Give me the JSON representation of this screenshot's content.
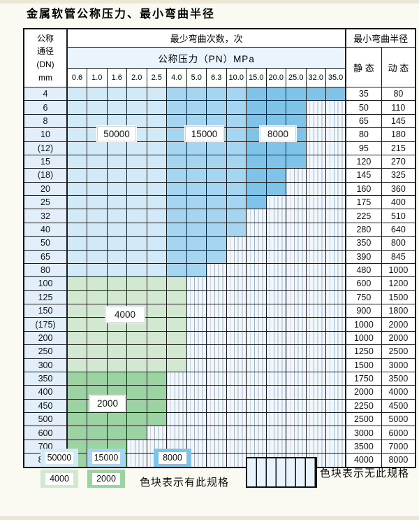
{
  "title": "金属软管公称压力、最小弯曲半径",
  "table": {
    "header": {
      "dn_label": "公称\n通径\n(DN)\nmm",
      "bend_cycles_label": "最少弯曲次数，次",
      "pressure_label": "公称压力（PN）MPa",
      "min_radius_label": "最小弯曲半径",
      "static_label": "静 态",
      "dynamic_label": "动 态",
      "pressure_cols": [
        "0.6",
        "1.0",
        "1.6",
        "2.0",
        "2.5",
        "4.0",
        "5.0",
        "6.3",
        "10.0",
        "15.0",
        "20.0",
        "25.0",
        "32.0",
        "35.0"
      ]
    },
    "rows": [
      {
        "dn": "4",
        "shaded": 14,
        "fill": "blue",
        "static": "35",
        "dynamic": "80"
      },
      {
        "dn": "6",
        "shaded": 12,
        "fill": "blue",
        "static": "50",
        "dynamic": "110"
      },
      {
        "dn": "8",
        "shaded": 12,
        "fill": "blue",
        "static": "65",
        "dynamic": "145"
      },
      {
        "dn": "10",
        "shaded": 12,
        "fill": "blue",
        "static": "80",
        "dynamic": "180"
      },
      {
        "dn": "(12)",
        "shaded": 12,
        "fill": "blue",
        "static": "95",
        "dynamic": "215"
      },
      {
        "dn": "15",
        "shaded": 12,
        "fill": "blue",
        "static": "120",
        "dynamic": "270"
      },
      {
        "dn": "(18)",
        "shaded": 11,
        "fill": "blue",
        "static": "145",
        "dynamic": "325"
      },
      {
        "dn": "20",
        "shaded": 11,
        "fill": "blue",
        "static": "160",
        "dynamic": "360"
      },
      {
        "dn": "25",
        "shaded": 10,
        "fill": "blue",
        "static": "175",
        "dynamic": "400"
      },
      {
        "dn": "32",
        "shaded": 9,
        "fill": "blue",
        "static": "225",
        "dynamic": "510"
      },
      {
        "dn": "40",
        "shaded": 9,
        "fill": "blue",
        "static": "280",
        "dynamic": "640"
      },
      {
        "dn": "50",
        "shaded": 8,
        "fill": "blue",
        "static": "350",
        "dynamic": "800"
      },
      {
        "dn": "65",
        "shaded": 8,
        "fill": "blue",
        "static": "390",
        "dynamic": "845"
      },
      {
        "dn": "80",
        "shaded": 7,
        "fill": "blue",
        "static": "480",
        "dynamic": "1000"
      },
      {
        "dn": "100",
        "shaded": 6,
        "fill": "g4000",
        "static": "600",
        "dynamic": "1200"
      },
      {
        "dn": "125",
        "shaded": 6,
        "fill": "g4000",
        "static": "750",
        "dynamic": "1500"
      },
      {
        "dn": "150",
        "shaded": 6,
        "fill": "g4000",
        "static": "900",
        "dynamic": "1800"
      },
      {
        "dn": "(175)",
        "shaded": 6,
        "fill": "g4000",
        "static": "1000",
        "dynamic": "2000"
      },
      {
        "dn": "200",
        "shaded": 6,
        "fill": "g4000",
        "static": "1000",
        "dynamic": "2000"
      },
      {
        "dn": "250",
        "shaded": 6,
        "fill": "g4000",
        "static": "1250",
        "dynamic": "2500"
      },
      {
        "dn": "300",
        "shaded": 6,
        "fill": "g4000",
        "static": "1500",
        "dynamic": "3000"
      },
      {
        "dn": "350",
        "shaded": 5,
        "fill": "g2000",
        "static": "1750",
        "dynamic": "3500"
      },
      {
        "dn": "400",
        "shaded": 5,
        "fill": "g2000",
        "static": "2000",
        "dynamic": "4000"
      },
      {
        "dn": "450",
        "shaded": 5,
        "fill": "g2000",
        "static": "2250",
        "dynamic": "4500"
      },
      {
        "dn": "500",
        "shaded": 5,
        "fill": "g2000",
        "static": "2500",
        "dynamic": "5000"
      },
      {
        "dn": "600",
        "shaded": 4,
        "fill": "g2000",
        "static": "3000",
        "dynamic": "6000"
      },
      {
        "dn": "700",
        "shaded": 3,
        "fill": "g2000",
        "static": "3500",
        "dynamic": "7000"
      },
      {
        "dn": "800",
        "shaded": 3,
        "fill": "g2000",
        "static": "4000",
        "dynamic": "8000"
      }
    ],
    "blue_column_zones": [
      {
        "cycles": "50000",
        "first_col": 0,
        "last_col": 4
      },
      {
        "cycles": "15000",
        "first_col": 5,
        "last_col": 8
      },
      {
        "cycles": "8000",
        "first_col": 9,
        "last_col": 13
      }
    ],
    "overlay_labels": [
      "50000",
      "15000",
      "8000",
      "4000",
      "2000"
    ]
  },
  "legend": {
    "has_spec_items": [
      {
        "label": "50000",
        "color_key": "c50000"
      },
      {
        "label": "15000",
        "color_key": "c15000"
      },
      {
        "label": "8000",
        "color_key": "c8000"
      },
      {
        "label": "4000",
        "color_key": "c4000"
      },
      {
        "label": "2000",
        "color_key": "c2000"
      }
    ],
    "has_spec_text": "色块表示有此规格",
    "no_spec_text": "色块表示无此规格"
  },
  "colors": {
    "c50000": "#d2e9f8",
    "c15000": "#a5d5f0",
    "c8000": "#7fc3e8",
    "c4000": "#d2e8d1",
    "c2000": "#9bd3a2"
  }
}
